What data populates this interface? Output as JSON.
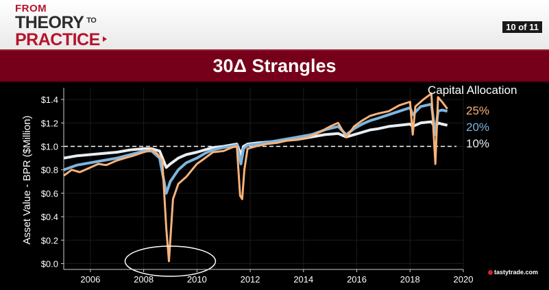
{
  "header": {
    "logo": {
      "line1": "FROM",
      "line2": "THEORY",
      "line2_small": "TO",
      "line3": "PRACTICE"
    },
    "page_counter": "10 of 11"
  },
  "banner": {
    "title": "30Δ Strangles"
  },
  "legend": {
    "title": "Capital Allocation",
    "items": [
      {
        "label": "25%",
        "color": "#f8b27a"
      },
      {
        "label": "20%",
        "color": "#7db4de"
      },
      {
        "label": "10%",
        "color": "#e8eef4"
      }
    ]
  },
  "brand": {
    "text": "tastytrade",
    "suffix": ".com"
  },
  "colors": {
    "background": "#000000",
    "banner": "#76001a",
    "accent": "#b5142c",
    "reference_line": "#ffffff"
  },
  "chart_data": {
    "type": "line",
    "ylabel": "Asset Value - BPR ($Million)",
    "xlabel": "",
    "xlim": [
      2005,
      2020
    ],
    "ylim": [
      -0.05,
      1.5
    ],
    "xticks": [
      2006,
      2008,
      2010,
      2012,
      2014,
      2016,
      2018,
      2020
    ],
    "xtick_labels": [
      "2006",
      "2008",
      "2010",
      "2012",
      "2014",
      "2016",
      "2018",
      "2020"
    ],
    "yticks": [
      0.0,
      0.2,
      0.4,
      0.6,
      0.8,
      1.0,
      1.2,
      1.4
    ],
    "ytick_labels": [
      "$0.0",
      "$0.2",
      "$0.4",
      "$0.6",
      "$0.8",
      "$1.0",
      "$1.2",
      "$1.4"
    ],
    "reference_line": {
      "y": 1.0,
      "style": "dashed"
    },
    "annotation": {
      "shape": "ellipse",
      "x": 2009.0,
      "y": 0.02
    },
    "series": [
      {
        "name": "10%",
        "color": "#e8eef4",
        "x": [
          2005.0,
          2005.5,
          2006.0,
          2006.5,
          2007.0,
          2007.5,
          2008.0,
          2008.3,
          2008.6,
          2008.85,
          2009.0,
          2009.3,
          2009.6,
          2010.0,
          2010.3,
          2010.6,
          2011.0,
          2011.5,
          2011.65,
          2011.75,
          2011.9,
          2012.3,
          2012.8,
          2013.3,
          2013.8,
          2014.3,
          2014.8,
          2015.3,
          2015.6,
          2015.9,
          2016.2,
          2016.5,
          2016.8,
          2017.2,
          2017.6,
          2018.0,
          2018.1,
          2018.4,
          2018.8,
          2018.95,
          2019.05,
          2019.2,
          2019.4
        ],
        "y": [
          0.9,
          0.92,
          0.93,
          0.94,
          0.95,
          0.97,
          0.98,
          0.98,
          0.96,
          0.82,
          0.85,
          0.9,
          0.93,
          0.95,
          0.97,
          0.99,
          1.0,
          1.02,
          0.93,
          1.0,
          1.02,
          1.03,
          1.04,
          1.05,
          1.06,
          1.08,
          1.1,
          1.11,
          1.08,
          1.1,
          1.12,
          1.14,
          1.15,
          1.17,
          1.18,
          1.19,
          1.17,
          1.2,
          1.21,
          1.16,
          1.2,
          1.19,
          1.18
        ]
      },
      {
        "name": "20%",
        "color": "#7db4de",
        "x": [
          2005.0,
          2005.5,
          2006.0,
          2006.5,
          2007.0,
          2007.5,
          2008.0,
          2008.3,
          2008.6,
          2008.85,
          2009.0,
          2009.3,
          2009.6,
          2010.0,
          2010.3,
          2010.6,
          2011.0,
          2011.5,
          2011.65,
          2011.75,
          2011.9,
          2012.3,
          2012.8,
          2013.3,
          2013.8,
          2014.3,
          2014.8,
          2015.3,
          2015.6,
          2015.9,
          2016.2,
          2016.5,
          2016.8,
          2017.2,
          2017.6,
          2018.0,
          2018.1,
          2018.4,
          2018.8,
          2018.95,
          2019.05,
          2019.2,
          2019.4
        ],
        "y": [
          0.8,
          0.84,
          0.86,
          0.88,
          0.9,
          0.93,
          0.96,
          0.96,
          0.9,
          0.6,
          0.7,
          0.8,
          0.86,
          0.9,
          0.94,
          0.97,
          0.99,
          1.01,
          0.85,
          0.98,
          1.01,
          1.02,
          1.04,
          1.06,
          1.08,
          1.1,
          1.14,
          1.17,
          1.1,
          1.15,
          1.19,
          1.22,
          1.24,
          1.27,
          1.3,
          1.33,
          1.27,
          1.34,
          1.36,
          1.1,
          1.3,
          1.31,
          1.3
        ]
      },
      {
        "name": "25%",
        "color": "#f8b27a",
        "x": [
          2005.0,
          2005.3,
          2005.6,
          2006.0,
          2006.3,
          2006.6,
          2007.0,
          2007.3,
          2007.6,
          2008.0,
          2008.3,
          2008.5,
          2008.7,
          2008.85,
          2008.95,
          2009.1,
          2009.3,
          2009.6,
          2010.0,
          2010.3,
          2010.6,
          2011.0,
          2011.3,
          2011.5,
          2011.62,
          2011.7,
          2011.78,
          2011.9,
          2012.2,
          2012.6,
          2013.0,
          2013.4,
          2013.8,
          2014.2,
          2014.6,
          2015.0,
          2015.3,
          2015.6,
          2015.75,
          2015.9,
          2016.2,
          2016.5,
          2016.8,
          2017.2,
          2017.6,
          2018.0,
          2018.1,
          2018.2,
          2018.5,
          2018.8,
          2018.95,
          2019.05,
          2019.2,
          2019.4
        ],
        "y": [
          0.75,
          0.8,
          0.78,
          0.82,
          0.85,
          0.84,
          0.88,
          0.9,
          0.92,
          0.95,
          0.97,
          0.94,
          0.88,
          0.3,
          0.02,
          0.55,
          0.68,
          0.74,
          0.85,
          0.9,
          0.95,
          0.96,
          0.99,
          1.0,
          0.58,
          0.55,
          0.8,
          0.98,
          1.0,
          1.02,
          1.03,
          1.05,
          1.06,
          1.08,
          1.12,
          1.17,
          1.2,
          1.08,
          1.12,
          1.17,
          1.22,
          1.26,
          1.28,
          1.3,
          1.35,
          1.38,
          1.1,
          1.34,
          1.4,
          1.45,
          0.85,
          1.42,
          1.38,
          1.32
        ]
      }
    ]
  }
}
